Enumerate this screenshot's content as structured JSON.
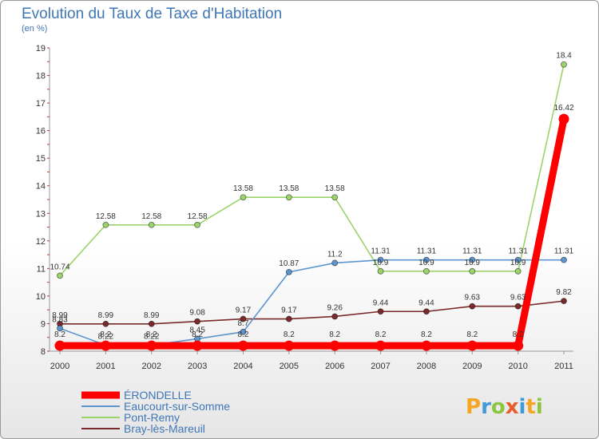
{
  "title": "Evolution du Taux de Taxe d'Habitation",
  "unit": "(en %)",
  "brand": {
    "text": "Proxiti"
  },
  "chart_data": {
    "type": "line",
    "title": "Evolution du Taux de Taxe d'Habitation",
    "ylabel": "(en %)",
    "xlabel": "",
    "x": [
      "2000",
      "2001",
      "2002",
      "2003",
      "2004",
      "2005",
      "2006",
      "2007",
      "2008",
      "2009",
      "2010",
      "2011"
    ],
    "ylim": [
      8,
      19
    ],
    "yticks": [
      "8",
      "9",
      "10",
      "11",
      "12",
      "13",
      "14",
      "15",
      "16",
      "17",
      "18",
      "19"
    ],
    "grid": false,
    "legend_position": "bottom-left",
    "series": [
      {
        "name": "ÉRONDELLE",
        "color": "#ff0000",
        "values": [
          8.2,
          8.2,
          8.2,
          8.2,
          8.2,
          8.2,
          8.2,
          8.2,
          8.2,
          8.2,
          8.2,
          16.42
        ],
        "labels": [
          "8.2",
          "8.2",
          "8.2",
          "8.2",
          "8.2",
          "8.2",
          "8.2",
          "8.2",
          "8.2",
          "8.2",
          "8.2",
          "16.42"
        ]
      },
      {
        "name": "Eaucourt-sur-Somme",
        "color": "#5d95cf",
        "values": [
          8.83,
          8.22,
          8.22,
          8.45,
          8.7,
          10.87,
          11.2,
          11.31,
          11.31,
          11.31,
          11.31,
          11.31
        ],
        "labels": [
          "8.83",
          "8.22",
          "8.22",
          "8.45",
          "8.7",
          "10.87",
          "11.2",
          "11.31",
          "11.31",
          "11.31",
          "11.31",
          "11.31"
        ]
      },
      {
        "name": "Pont-Remy",
        "color": "#9bd46a",
        "values": [
          10.74,
          12.58,
          12.58,
          12.58,
          13.58,
          13.58,
          13.58,
          10.9,
          10.9,
          10.9,
          10.9,
          18.4
        ],
        "labels": [
          "10.74",
          "12.58",
          "12.58",
          "12.58",
          "13.58",
          "13.58",
          "13.58",
          "10.9",
          "10.9",
          "10.9",
          "10.9",
          "18.4"
        ]
      },
      {
        "name": "Bray-lès-Mareuil",
        "color": "#7a2a2a",
        "values": [
          8.99,
          8.99,
          8.99,
          9.08,
          9.17,
          9.17,
          9.26,
          9.44,
          9.44,
          9.63,
          9.63,
          9.82
        ],
        "labels": [
          "8.99",
          "8.99",
          "8.99",
          "9.08",
          "9.17",
          "9.17",
          "9.26",
          "9.44",
          "9.44",
          "9.63",
          "9.63",
          "9.82"
        ]
      }
    ]
  }
}
